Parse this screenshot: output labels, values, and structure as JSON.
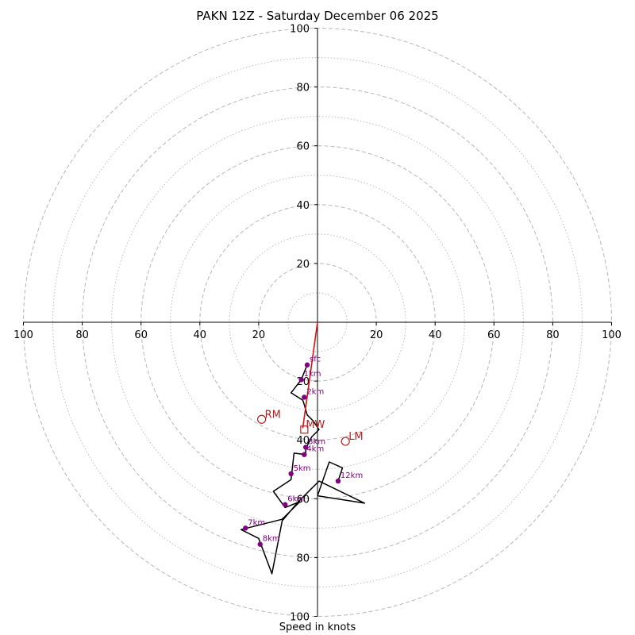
{
  "title": "PAKN 12Z - Saturday December 06 2025",
  "colors": {
    "hodograph": "#000000",
    "height_markers": "#800080",
    "motion": "#b22222",
    "shear_vector": "#e01010",
    "grid": "#bdbdbd"
  },
  "chart_data": {
    "type": "hodograph",
    "title": "PAKN 12Z - Saturday December 06 2025",
    "xlabel": "Speed in knots",
    "xlim": [
      -100,
      100
    ],
    "ylim": [
      -100,
      100
    ],
    "rings_major": [
      20,
      40,
      60,
      80,
      100
    ],
    "rings_minor": [
      10,
      30,
      50,
      70,
      90
    ],
    "x_tick_labels": [
      "100",
      "80",
      "60",
      "40",
      "20",
      "20",
      "40",
      "60",
      "80",
      "100"
    ],
    "y_tick_labels_top": [
      "20",
      "40",
      "60",
      "80",
      "100"
    ],
    "y_tick_labels_bottom": [
      "20",
      "40",
      "60",
      "80",
      "100"
    ],
    "hodograph": [
      [
        -3.5,
        -14.5
      ],
      [
        -5.5,
        -19.5
      ],
      [
        -9,
        -24
      ],
      [
        -5,
        -26.5
      ],
      [
        -4.5,
        -28
      ],
      [
        -3.5,
        -31.5
      ],
      [
        -1.5,
        -33.5
      ],
      [
        0.5,
        -36.5
      ],
      [
        -2,
        -39
      ],
      [
        -4,
        -43
      ],
      [
        -4,
        -45
      ],
      [
        -8,
        -44.5
      ],
      [
        -9,
        -53.5
      ],
      [
        -15,
        -57.5
      ],
      [
        -11,
        -63
      ],
      [
        -6,
        -61
      ],
      [
        -12,
        -67
      ],
      [
        -26,
        -70.5
      ],
      [
        -20,
        -73.5
      ],
      [
        -15.5,
        -85.5
      ],
      [
        -12,
        -67.5
      ],
      [
        -6.5,
        -61
      ],
      [
        0.5,
        -54
      ],
      [
        16,
        -61.5
      ],
      [
        0,
        -59
      ],
      [
        4,
        -47.5
      ],
      [
        8.5,
        -49.5
      ],
      [
        7,
        -54
      ]
    ],
    "height_markers": [
      {
        "label": "sfc",
        "u": -3.5,
        "v": -14.5
      },
      {
        "label": "1km",
        "u": -5.5,
        "v": -19.5
      },
      {
        "label": "2km",
        "u": -4.5,
        "v": -25.5
      },
      {
        "label": "3km",
        "u": -4,
        "v": -42.5
      },
      {
        "label": "4km",
        "u": -4.5,
        "v": -45
      },
      {
        "label": "5km",
        "u": -9,
        "v": -51.5
      },
      {
        "label": "6km",
        "u": -11,
        "v": -62
      },
      {
        "label": "7km",
        "u": -24.5,
        "v": -70
      },
      {
        "label": "8km",
        "u": -19.5,
        "v": -75.5
      },
      {
        "label": "12km",
        "u": 7,
        "v": -54
      }
    ],
    "storm_motion": [
      {
        "label": "RM",
        "u": -19,
        "v": -33
      },
      {
        "label": "LM",
        "u": 9.5,
        "v": -40.5
      },
      {
        "label": "MW",
        "u": -4.5,
        "v": -36.5
      }
    ],
    "shear_vector": [
      [
        0,
        0
      ],
      [
        -5,
        -36
      ]
    ]
  }
}
